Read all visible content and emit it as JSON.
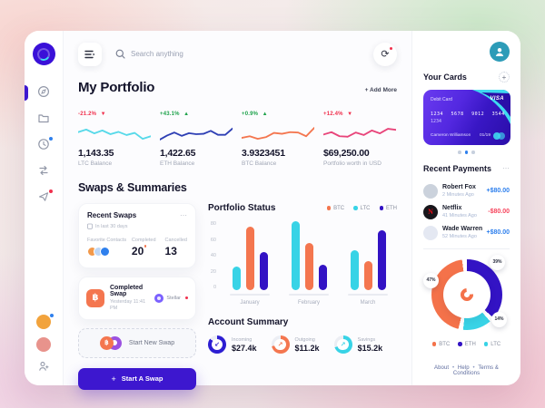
{
  "ui": {
    "dots_menu": "⋯",
    "plus": "+",
    "bullet": "•"
  },
  "header": {
    "search_placeholder": "Search anything"
  },
  "sidebar": {
    "icons": [
      "compass-dashboard",
      "folder",
      "history-clock",
      "swap-arrows",
      "send-flash"
    ],
    "avatars": [
      {
        "color": "#F2A33C"
      },
      {
        "color": "#E8938C"
      }
    ]
  },
  "portfolio": {
    "title": "My Portfolio",
    "add_more": "+ Add More",
    "cards": [
      {
        "change": "-21.2%",
        "arrow": "▼",
        "change_color": "#F0304D",
        "value": "1,143.35",
        "label": "LTC Balance",
        "color": "#57D9E9",
        "spark": [
          62,
          78,
          55,
          72,
          50,
          64,
          45,
          58,
          22,
          38
        ]
      },
      {
        "change": "+43.1%",
        "arrow": "▲",
        "change_color": "#1EA24B",
        "value": "1,422.65",
        "label": "ETH Balance",
        "color": "#2E3FB4",
        "spark": [
          18,
          42,
          60,
          40,
          56,
          50,
          52,
          70,
          46,
          46,
          84
        ]
      },
      {
        "change": "+0.9%",
        "arrow": "▲",
        "change_color": "#1EA24B",
        "value": "3.9323451",
        "label": "BTC Balance",
        "color": "#F4764F",
        "spark": [
          28,
          38,
          22,
          32,
          58,
          52,
          62,
          60,
          38,
          88
        ]
      },
      {
        "change": "+12.4%",
        "arrow": "▼",
        "change_color": "#F0304D",
        "value": "$69,250.00",
        "label": "Portfolio worth in USD",
        "color": "#E8447A",
        "spark": [
          48,
          62,
          38,
          35,
          60,
          45,
          72,
          55,
          82,
          76
        ]
      }
    ]
  },
  "swaps": {
    "title": "Swaps & Summaries",
    "recent_swaps": {
      "title": "Recent Swaps",
      "subtitle": "In last 30 days",
      "favorites_label": "Favorite Contacts",
      "contacts": [
        {
          "color": "#F2994A"
        },
        {
          "color": "#BFD7F6"
        },
        {
          "color": "#2F80ED"
        }
      ],
      "completed_label": "Completed",
      "completed_value": "20",
      "cancelled_label": "Cancelled",
      "cancelled_value": "13"
    },
    "completed_swap": {
      "title": "Completed Swap",
      "time": "Yesterday 11:41 PM",
      "asset": "Stellar",
      "coin": "฿"
    },
    "start_new_label": "Start New Swap",
    "start_button_label": "Start A Swap"
  },
  "account_summary": {
    "title": "Account Summary",
    "items": [
      {
        "label": "Incoming",
        "value": "$27.4k",
        "color": "#2D1ED2",
        "arrow": "↙",
        "progress": 86
      },
      {
        "label": "Outgoing",
        "value": "$11.2k",
        "color": "#F4764F",
        "arrow": "↗",
        "progress": 72
      },
      {
        "label": "Savings",
        "value": "$15.2k",
        "color": "#38D3E6",
        "arrow": "↗",
        "progress": 70
      }
    ]
  },
  "right_panel": {
    "your_cards_title": "Your Cards",
    "card": {
      "type": "Debit Card",
      "brand": "VISA",
      "number": "1234 5678 9012 3544",
      "number2": "1234",
      "holder": "Cameron Williamson",
      "expiry": "01/19"
    },
    "payments": {
      "title": "Recent Payments",
      "items": [
        {
          "name": "Robert Fox",
          "time": "2 Minutes Ago",
          "amount": "+$80.00",
          "amount_color": "#2F80ED",
          "avatar_color": "#CBD2DC",
          "avatar_letter": ""
        },
        {
          "name": "Netflix",
          "time": "41 Minutes Ago",
          "amount": "-$80.00",
          "amount_color": "#F6455D",
          "avatar_color": "#17161B",
          "avatar_letter": "N"
        },
        {
          "name": "Wade Warren",
          "time": "52 Minutes Ago",
          "amount": "+$80.00",
          "amount_color": "#2F80ED",
          "avatar_color": "#E4E8F2",
          "avatar_letter": ""
        }
      ]
    },
    "footer_links": [
      "About",
      "Help",
      "Terms & Conditions"
    ]
  },
  "chart_data": [
    {
      "type": "bar",
      "title": "Portfolio Status",
      "categories": [
        "January",
        "February",
        "March"
      ],
      "series": [
        {
          "name": "LTC",
          "color": "#38D3E6",
          "values": [
            27,
            80,
            46
          ]
        },
        {
          "name": "BTC",
          "color": "#F4764F",
          "values": [
            74,
            55,
            34
          ]
        },
        {
          "name": "ETH",
          "color": "#3313C4",
          "values": [
            44,
            30,
            70
          ]
        }
      ],
      "legend": [
        {
          "name": "BTC",
          "color": "#F4764F"
        },
        {
          "name": "LTC",
          "color": "#38D3E6"
        },
        {
          "name": "ETH",
          "color": "#3313C4"
        }
      ],
      "xlabel": "",
      "ylabel": "",
      "ylim": [
        0,
        80
      ],
      "yticks": [
        80,
        60,
        40,
        20,
        0
      ],
      "grid": false,
      "legend_position": "top-right"
    },
    {
      "type": "donut",
      "slices": [
        {
          "name": "ETH",
          "pct": 39,
          "label": "39%",
          "color": "#3313C4"
        },
        {
          "name": "LTC",
          "pct": 14,
          "label": "14%",
          "color": "#38D3E6"
        },
        {
          "name": "BTC",
          "pct": 47,
          "label": "47%",
          "color": "#F4724A"
        }
      ],
      "legend": [
        {
          "name": "BTC",
          "color": "#F4724A"
        },
        {
          "name": "ETH",
          "color": "#3313C4"
        },
        {
          "name": "LTC",
          "color": "#38D3E6"
        }
      ],
      "legend_position": "bottom"
    }
  ]
}
